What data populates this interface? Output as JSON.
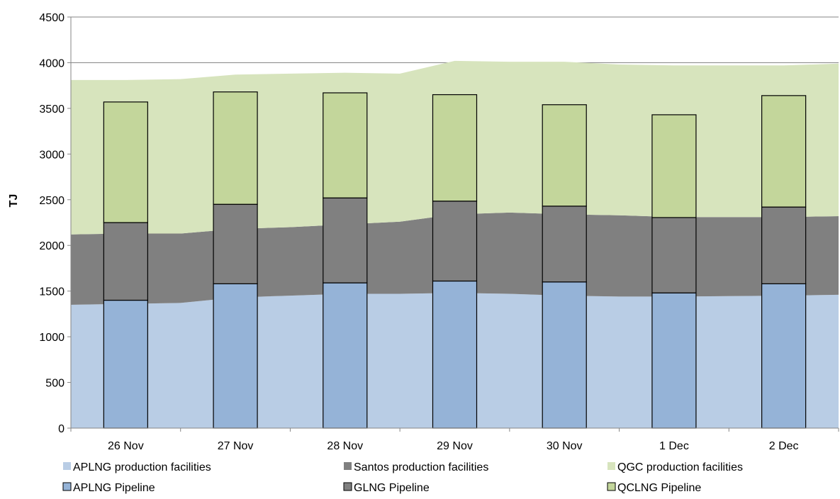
{
  "chart_data": {
    "type": "bar",
    "title": "",
    "xlabel": "",
    "ylabel": "TJ",
    "ylim": [
      0,
      4500
    ],
    "yticks": [
      0,
      500,
      1000,
      1500,
      2000,
      2500,
      3000,
      3500,
      4000,
      4500
    ],
    "grid": true,
    "legend_position": "bottom",
    "categories": [
      "26 Nov",
      "27 Nov",
      "28 Nov",
      "29 Nov",
      "30 Nov",
      "1 Dec",
      "2 Dec"
    ],
    "area_series": [
      {
        "name": "APLNG production facilities",
        "color": "#b9cde5",
        "x": [
          "",
          "26 Nov",
          "",
          "27 Nov",
          "",
          "28 Nov",
          "",
          "29 Nov",
          "",
          "30 Nov",
          "",
          "1 Dec",
          "",
          "2 Dec",
          ""
        ],
        "values": [
          1350,
          1360,
          1370,
          1430,
          1450,
          1470,
          1470,
          1480,
          1470,
          1450,
          1440,
          1440,
          1445,
          1450,
          1460
        ]
      },
      {
        "name": "Santos production facilities",
        "color": "#808080",
        "x": [
          "",
          "26 Nov",
          "",
          "27 Nov",
          "",
          "28 Nov",
          "",
          "29 Nov",
          "",
          "30 Nov",
          "",
          "1 Dec",
          "",
          "2 Dec",
          ""
        ],
        "values": [
          770,
          770,
          760,
          750,
          750,
          760,
          790,
          860,
          890,
          890,
          890,
          870,
          865,
          860,
          860
        ]
      },
      {
        "name": "QGC production facilities",
        "color": "#d7e4bd",
        "x": [
          "",
          "26 Nov",
          "",
          "27 Nov",
          "",
          "28 Nov",
          "",
          "29 Nov",
          "",
          "30 Nov",
          "",
          "1 Dec",
          "",
          "2 Dec",
          ""
        ],
        "values": [
          1690,
          1680,
          1690,
          1690,
          1680,
          1660,
          1620,
          1680,
          1650,
          1670,
          1650,
          1660,
          1660,
          1660,
          1670
        ]
      }
    ],
    "bar_series": [
      {
        "name": "APLNG Pipeline",
        "color": "#95b3d7",
        "values": [
          1400,
          1580,
          1590,
          1610,
          1600,
          1480,
          1580
        ]
      },
      {
        "name": "GLNG Pipeline",
        "color": "#808080",
        "values": [
          850,
          870,
          930,
          875,
          830,
          825,
          840
        ]
      },
      {
        "name": "QCLNG Pipeline",
        "color": "#c3d69b",
        "values": [
          1320,
          1230,
          1150,
          1165,
          1110,
          1125,
          1220
        ]
      }
    ]
  }
}
